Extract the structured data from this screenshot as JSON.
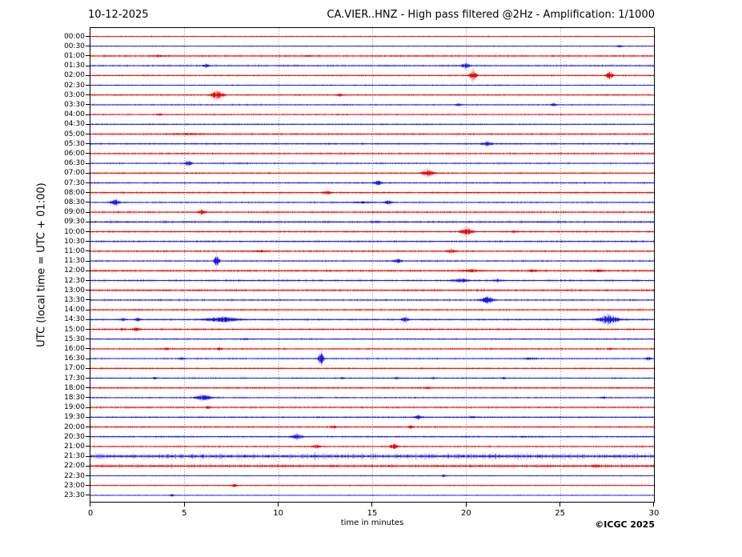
{
  "header": {
    "date": "10-12-2025",
    "title": "CA.VIER..HNZ - High pass filtered @2Hz - Amplification: 1/1000"
  },
  "footer": {
    "copyright": "©ICGC 2025",
    "xlabel": "time in minutes"
  },
  "chart_data": {
    "type": "line",
    "variant": "helicorder-day-plot",
    "title": "CA.VIER..HNZ - High pass filtered @2Hz - Amplification: 1/1000",
    "date": "10-12-2025",
    "station": "CA.VIER..HNZ",
    "filter": "High pass filtered @2Hz",
    "amplification": "1/1000",
    "xlabel": "time in minutes",
    "ylabel": "UTC (local time = UTC + 01:00)",
    "xlim": [
      0,
      30
    ],
    "x_ticks": [
      0,
      5,
      10,
      15,
      20,
      25,
      30
    ],
    "row_interval_minutes": 30,
    "grid": {
      "vertical_minutes": [
        5,
        10,
        15,
        20,
        25
      ],
      "style": "dotted",
      "color": "#555555"
    },
    "palette": {
      "red": "#e60000",
      "blue": "#1515dd"
    },
    "events_format": "t = event start (minutes), d = duration (minutes), a = peak amplitude (px half-height); noise = background fuzz half-height (px)",
    "rows": [
      {
        "label": "00:00",
        "color": "red",
        "noise": 0.8,
        "events": []
      },
      {
        "label": "00:30",
        "color": "blue",
        "noise": 0.7,
        "events": [
          {
            "t": 28.0,
            "d": 0.3,
            "a": 1.8
          }
        ]
      },
      {
        "label": "01:00",
        "color": "red",
        "noise": 1.3,
        "events": [
          {
            "t": 2.8,
            "d": 1.6,
            "a": 1.6
          },
          {
            "t": 11.2,
            "d": 0.8,
            "a": 1.4
          }
        ]
      },
      {
        "label": "01:30",
        "color": "blue",
        "noise": 1.2,
        "events": [
          {
            "t": 6.0,
            "d": 0.3,
            "a": 2.6
          },
          {
            "t": 19.7,
            "d": 0.5,
            "a": 3.8
          }
        ]
      },
      {
        "label": "02:00",
        "color": "red",
        "noise": 1.0,
        "events": [
          {
            "t": 20.2,
            "d": 0.3,
            "a": 6.5
          },
          {
            "t": 27.5,
            "d": 0.25,
            "a": 5.5
          }
        ]
      },
      {
        "label": "02:30",
        "color": "blue",
        "noise": 0.9,
        "events": []
      },
      {
        "label": "03:00",
        "color": "red",
        "noise": 1.0,
        "events": [
          {
            "t": 6.3,
            "d": 0.9,
            "a": 5.5
          },
          {
            "t": 13.1,
            "d": 0.3,
            "a": 2.2
          }
        ]
      },
      {
        "label": "03:30",
        "color": "blue",
        "noise": 1.0,
        "events": [
          {
            "t": 19.4,
            "d": 0.4,
            "a": 2.2
          },
          {
            "t": 24.5,
            "d": 0.3,
            "a": 2.2
          }
        ]
      },
      {
        "label": "04:00",
        "color": "red",
        "noise": 1.0,
        "events": [
          {
            "t": 3.5,
            "d": 0.3,
            "a": 1.8
          }
        ]
      },
      {
        "label": "04:30",
        "color": "blue",
        "noise": 1.0,
        "events": []
      },
      {
        "label": "05:00",
        "color": "red",
        "noise": 1.3,
        "events": [
          {
            "t": 3.2,
            "d": 4.0,
            "a": 1.6
          }
        ]
      },
      {
        "label": "05:30",
        "color": "blue",
        "noise": 1.2,
        "events": [
          {
            "t": 20.7,
            "d": 0.8,
            "a": 3.2
          }
        ]
      },
      {
        "label": "06:00",
        "color": "red",
        "noise": 1.3,
        "events": []
      },
      {
        "label": "06:30",
        "color": "blue",
        "noise": 1.1,
        "events": [
          {
            "t": 5.0,
            "d": 0.4,
            "a": 3.8
          }
        ]
      },
      {
        "label": "07:00",
        "color": "red",
        "noise": 1.1,
        "events": [
          {
            "t": 17.5,
            "d": 0.9,
            "a": 4.5
          }
        ]
      },
      {
        "label": "07:30",
        "color": "blue",
        "noise": 1.1,
        "events": [
          {
            "t": 15.0,
            "d": 0.6,
            "a": 3.2
          }
        ]
      },
      {
        "label": "08:00",
        "color": "red",
        "noise": 1.2,
        "events": [
          {
            "t": 12.3,
            "d": 0.5,
            "a": 3.2
          }
        ]
      },
      {
        "label": "08:30",
        "color": "blue",
        "noise": 1.1,
        "events": [
          {
            "t": 1.0,
            "d": 0.6,
            "a": 4.2
          },
          {
            "t": 13.2,
            "d": 2.6,
            "a": 1.6
          },
          {
            "t": 15.6,
            "d": 0.5,
            "a": 2.8
          }
        ]
      },
      {
        "label": "09:00",
        "color": "red",
        "noise": 1.3,
        "events": [
          {
            "t": 5.7,
            "d": 0.4,
            "a": 3.8
          }
        ]
      },
      {
        "label": "09:30",
        "color": "blue",
        "noise": 1.4,
        "events": [
          {
            "t": 15.0,
            "d": 0.4,
            "a": 1.8
          }
        ]
      },
      {
        "label": "10:00",
        "color": "red",
        "noise": 1.2,
        "events": [
          {
            "t": 19.6,
            "d": 0.8,
            "a": 5.0
          },
          {
            "t": 22.4,
            "d": 0.3,
            "a": 2.2
          }
        ]
      },
      {
        "label": "10:30",
        "color": "blue",
        "noise": 1.2,
        "events": []
      },
      {
        "label": "11:00",
        "color": "red",
        "noise": 1.3,
        "events": [
          {
            "t": 8.4,
            "d": 1.3,
            "a": 1.8
          },
          {
            "t": 18.9,
            "d": 0.6,
            "a": 3.2
          }
        ]
      },
      {
        "label": "11:30",
        "color": "blue",
        "noise": 1.2,
        "events": [
          {
            "t": 6.65,
            "d": 0.12,
            "a": 8.0
          },
          {
            "t": 16.0,
            "d": 0.7,
            "a": 3.0
          }
        ]
      },
      {
        "label": "12:00",
        "color": "red",
        "noise": 1.4,
        "events": [
          {
            "t": 19.4,
            "d": 1.8,
            "a": 2.2
          },
          {
            "t": 23.1,
            "d": 0.8,
            "a": 2.2
          },
          {
            "t": 26.3,
            "d": 1.4,
            "a": 1.8
          }
        ]
      },
      {
        "label": "12:30",
        "color": "blue",
        "noise": 1.3,
        "events": [
          {
            "t": 19.0,
            "d": 1.4,
            "a": 3.0
          },
          {
            "t": 21.4,
            "d": 0.5,
            "a": 2.6
          }
        ]
      },
      {
        "label": "13:00",
        "color": "red",
        "noise": 1.4,
        "events": []
      },
      {
        "label": "13:30",
        "color": "blue",
        "noise": 1.2,
        "events": [
          {
            "t": 20.6,
            "d": 1.0,
            "a": 4.5
          }
        ]
      },
      {
        "label": "14:00",
        "color": "red",
        "noise": 1.2,
        "events": []
      },
      {
        "label": "14:30",
        "color": "blue",
        "noise": 1.2,
        "events": [
          {
            "t": 1.6,
            "d": 0.2,
            "a": 2.6
          },
          {
            "t": 2.4,
            "d": 0.2,
            "a": 2.6
          },
          {
            "t": 5.4,
            "d": 3.2,
            "a": 4.0
          },
          {
            "t": 16.6,
            "d": 0.25,
            "a": 4.5
          },
          {
            "t": 26.7,
            "d": 1.7,
            "a": 6.0
          }
        ]
      },
      {
        "label": "15:00",
        "color": "red",
        "noise": 1.3,
        "events": [
          {
            "t": 1.5,
            "d": 0.3,
            "a": 2.2
          },
          {
            "t": 2.2,
            "d": 0.4,
            "a": 3.0
          }
        ]
      },
      {
        "label": "15:30",
        "color": "blue",
        "noise": 1.0,
        "events": [
          {
            "t": 8.1,
            "d": 0.3,
            "a": 1.8
          }
        ]
      },
      {
        "label": "16:00",
        "color": "red",
        "noise": 1.2,
        "events": [
          {
            "t": 3.8,
            "d": 0.4,
            "a": 2.2
          },
          {
            "t": 6.7,
            "d": 0.3,
            "a": 2.2
          },
          {
            "t": 27.5,
            "d": 0.3,
            "a": 1.8
          }
        ]
      },
      {
        "label": "16:30",
        "color": "blue",
        "noise": 1.0,
        "events": [
          {
            "t": 4.7,
            "d": 0.3,
            "a": 2.2
          },
          {
            "t": 12.2,
            "d": 0.12,
            "a": 9.0
          },
          {
            "t": 22.4,
            "d": 2.0,
            "a": 1.6
          },
          {
            "t": 29.6,
            "d": 0.2,
            "a": 2.6
          }
        ]
      },
      {
        "label": "17:00",
        "color": "red",
        "noise": 1.1,
        "events": []
      },
      {
        "label": "17:30",
        "color": "blue",
        "noise": 1.0,
        "events": [
          {
            "t": 3.3,
            "d": 0.2,
            "a": 1.8
          },
          {
            "t": 13.3,
            "d": 0.2,
            "a": 1.8
          },
          {
            "t": 16.2,
            "d": 0.2,
            "a": 1.8
          },
          {
            "t": 18.1,
            "d": 0.2,
            "a": 1.8
          },
          {
            "t": 21.9,
            "d": 0.2,
            "a": 1.8
          }
        ]
      },
      {
        "label": "18:00",
        "color": "red",
        "noise": 1.2,
        "events": [
          {
            "t": 17.8,
            "d": 0.3,
            "a": 2.2
          }
        ]
      },
      {
        "label": "18:30",
        "color": "blue",
        "noise": 1.0,
        "events": [
          {
            "t": 5.4,
            "d": 1.2,
            "a": 4.2
          },
          {
            "t": 27.2,
            "d": 0.2,
            "a": 1.8
          }
        ]
      },
      {
        "label": "19:00",
        "color": "red",
        "noise": 1.2,
        "events": [
          {
            "t": 6.1,
            "d": 0.3,
            "a": 2.2
          }
        ]
      },
      {
        "label": "19:30",
        "color": "blue",
        "noise": 1.1,
        "events": [
          {
            "t": 17.2,
            "d": 0.5,
            "a": 2.8
          },
          {
            "t": 20.2,
            "d": 0.3,
            "a": 1.8
          }
        ]
      },
      {
        "label": "20:00",
        "color": "red",
        "noise": 1.2,
        "events": [
          {
            "t": 12.8,
            "d": 0.3,
            "a": 2.2
          },
          {
            "t": 16.9,
            "d": 0.3,
            "a": 2.2
          }
        ]
      },
      {
        "label": "20:30",
        "color": "blue",
        "noise": 1.1,
        "events": [
          {
            "t": 10.5,
            "d": 0.9,
            "a": 3.8
          },
          {
            "t": 22.9,
            "d": 0.3,
            "a": 1.8
          }
        ]
      },
      {
        "label": "21:00",
        "color": "red",
        "noise": 1.1,
        "events": [
          {
            "t": 11.7,
            "d": 0.6,
            "a": 2.6
          },
          {
            "t": 15.9,
            "d": 0.5,
            "a": 3.5
          }
        ]
      },
      {
        "label": "21:30",
        "color": "blue",
        "noise": 2.6,
        "events": []
      },
      {
        "label": "22:00",
        "color": "red",
        "noise": 1.9,
        "events": [
          {
            "t": 26.5,
            "d": 0.8,
            "a": 2.2
          }
        ]
      },
      {
        "label": "22:30",
        "color": "blue",
        "noise": 0.7,
        "events": [
          {
            "t": 18.7,
            "d": 0.2,
            "a": 1.8
          }
        ]
      },
      {
        "label": "23:00",
        "color": "red",
        "noise": 0.8,
        "events": [
          {
            "t": 7.5,
            "d": 0.3,
            "a": 2.2
          }
        ]
      },
      {
        "label": "23:30",
        "color": "blue",
        "noise": 0.7,
        "events": [
          {
            "t": 4.2,
            "d": 0.2,
            "a": 1.8
          }
        ]
      }
    ]
  }
}
